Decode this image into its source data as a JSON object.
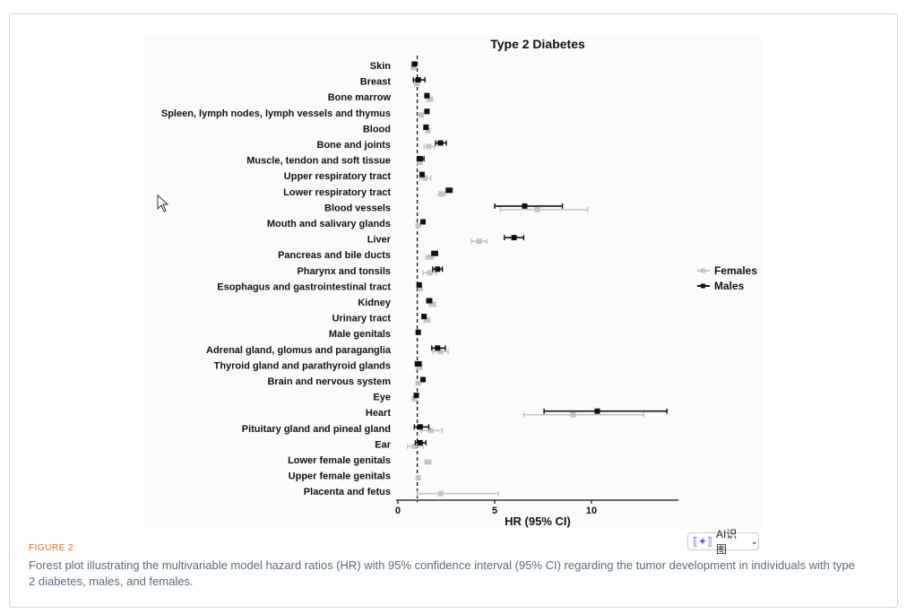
{
  "figure": {
    "label": "FIGURE 2",
    "caption": "Forest plot illustrating the multivariable model hazard ratios (HR) with 95% confidence interval (95% CI) regarding the tumor development in individuals with type 2 diabetes, males, and females."
  },
  "ai_button": {
    "label": "AI识图",
    "icon": "sparkle-scan-icon",
    "chevron": "⌄"
  },
  "colors": {
    "males": "#111111",
    "females": "#c4c4c4",
    "caption": "#5a6a7a",
    "figure_label": "#e0661b"
  },
  "chart_data": {
    "type": "forest",
    "title": "Type 2 Diabetes",
    "xlabel": "HR (95% CI)",
    "xlim": [
      0,
      14.5
    ],
    "xticks": [
      0,
      5,
      10
    ],
    "reference_line": 1,
    "legend": {
      "position": "right",
      "entries": [
        "Females",
        "Males"
      ]
    },
    "categories": [
      "Skin",
      "Breast",
      "Bone marrow",
      "Spleen, lymph nodes, lymph vessels and thymus",
      "Blood",
      "Bone and joints",
      "Muscle, tendon and soft tissue",
      "Upper respiratory tract",
      "Lower respiratory tract",
      "Blood vessels",
      "Mouth and salivary glands",
      "Liver",
      "Pancreas and bile ducts",
      "Pharynx and tonsils",
      "Esophagus and gastrointestinal tract",
      "Kidney",
      "Urinary tract",
      "Male genitals",
      "Adrenal gland, glomus and paraganglia",
      "Thyroid gland and parathyroid glands",
      "Brain and nervous system",
      "Eye",
      "Heart",
      "Pituitary gland and pineal gland",
      "Ear",
      "Lower female genitals",
      "Upper female genitals",
      "Placenta and fetus"
    ],
    "series": [
      {
        "name": "Males",
        "values": [
          [
            0.85,
            0.75,
            0.95
          ],
          [
            1.05,
            0.8,
            1.4
          ],
          [
            1.5,
            1.4,
            1.6
          ],
          [
            1.5,
            1.45,
            1.55
          ],
          [
            1.45,
            1.35,
            1.55
          ],
          [
            2.2,
            1.95,
            2.5
          ],
          [
            1.15,
            1.0,
            1.35
          ],
          [
            1.25,
            1.15,
            1.35
          ],
          [
            2.65,
            2.5,
            2.8
          ],
          [
            6.55,
            5.0,
            8.5
          ],
          [
            1.3,
            1.2,
            1.4
          ],
          [
            6.0,
            5.5,
            6.5
          ],
          [
            1.9,
            1.75,
            2.05
          ],
          [
            2.05,
            1.8,
            2.3
          ],
          [
            1.1,
            1.0,
            1.2
          ],
          [
            1.6,
            1.5,
            1.75
          ],
          [
            1.35,
            1.25,
            1.45
          ],
          [
            1.05,
            1.0,
            1.1
          ],
          [
            2.05,
            1.75,
            2.45
          ],
          [
            1.05,
            0.9,
            1.2
          ],
          [
            1.3,
            1.2,
            1.4
          ],
          [
            0.95,
            0.85,
            1.05
          ],
          [
            10.3,
            7.55,
            13.9
          ],
          [
            1.15,
            0.85,
            1.6
          ],
          [
            1.15,
            0.9,
            1.45
          ],
          null,
          null,
          null
        ]
      },
      {
        "name": "Females",
        "values": [
          [
            0.8,
            0.75,
            0.9
          ],
          [
            0.98,
            0.85,
            1.1
          ],
          [
            1.65,
            1.5,
            1.8
          ],
          [
            1.2,
            1.1,
            1.3
          ],
          [
            1.55,
            1.45,
            1.65
          ],
          [
            1.6,
            1.35,
            1.9
          ],
          [
            1.1,
            1.0,
            1.25
          ],
          [
            1.4,
            1.15,
            1.7
          ],
          [
            2.25,
            2.1,
            2.45
          ],
          [
            7.2,
            5.3,
            9.8
          ],
          [
            1.05,
            0.95,
            1.15
          ],
          [
            4.2,
            3.8,
            4.6
          ],
          [
            1.65,
            1.45,
            1.85
          ],
          [
            1.65,
            1.3,
            2.0
          ],
          [
            1.15,
            1.05,
            1.25
          ],
          [
            1.8,
            1.6,
            1.95
          ],
          [
            1.5,
            1.35,
            1.65
          ],
          null,
          [
            2.2,
            1.8,
            2.6
          ],
          [
            1.1,
            0.95,
            1.25
          ],
          [
            1.05,
            0.95,
            1.15
          ],
          [
            0.85,
            0.75,
            0.95
          ],
          [
            9.05,
            6.5,
            12.7
          ],
          [
            1.7,
            1.2,
            2.3
          ],
          [
            0.85,
            0.5,
            1.3
          ],
          [
            1.55,
            1.4,
            1.7
          ],
          [
            1.05,
            1.0,
            1.1
          ],
          [
            2.2,
            1.0,
            5.2
          ]
        ]
      }
    ]
  }
}
